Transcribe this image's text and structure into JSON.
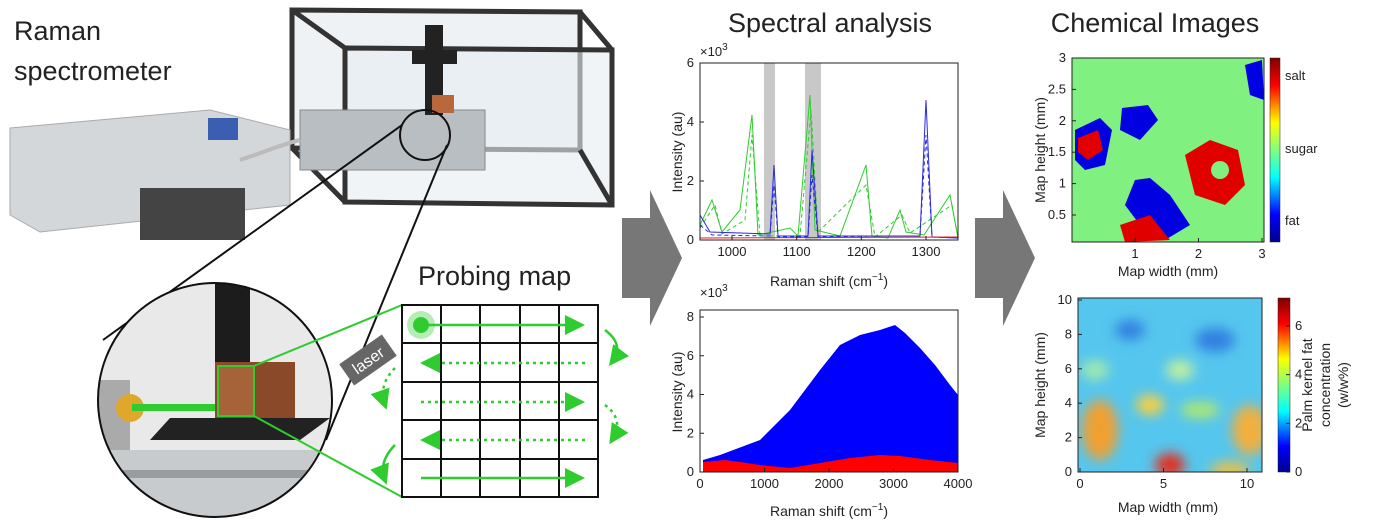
{
  "title_spectrometer": [
    "Raman",
    "spectrometer"
  ],
  "laser_label": "laser",
  "probing_map_title": "Probing map",
  "spectral_analysis": {
    "title": "Spectral analysis",
    "top_plot": {
      "exponent_base": "×10",
      "exponent": "3",
      "yticks": [
        "0",
        "2",
        "4",
        "6"
      ],
      "xticks": [
        "1000",
        "1100",
        "1200",
        "1300"
      ],
      "ylabel": "Intensity (au)",
      "xlabel": [
        "Raman shift (cm",
        "−1",
        ")"
      ]
    },
    "bottom_plot": {
      "exponent_base": "×10",
      "exponent": "3",
      "yticks": [
        "0",
        "2",
        "4",
        "6",
        "8"
      ],
      "xticks": [
        "0",
        "1000",
        "2000",
        "3000",
        "4000"
      ],
      "ylabel": "Intensity (au)",
      "xlabel": [
        "Raman shift (cm",
        "−1",
        ")"
      ]
    }
  },
  "chemical_images": {
    "title": "Chemical Images",
    "top_map": {
      "yticks": [
        "0.5",
        "1",
        "1.5",
        "2",
        "2.5",
        "3"
      ],
      "xticks": [
        "1",
        "2",
        "3"
      ],
      "xlabel": "Map width (mm)",
      "ylabel": "Map height (mm)",
      "colorbar_labels": [
        "salt",
        "sugar",
        "fat"
      ]
    },
    "bottom_map": {
      "yticks": [
        "0",
        "2",
        "4",
        "6",
        "8",
        "10"
      ],
      "xticks": [
        "0",
        "5",
        "10"
      ],
      "xlabel": "Map width (mm)",
      "ylabel": "Map height (mm)",
      "colorbar_ticks": [
        "0",
        "2",
        "4",
        "6"
      ],
      "colorbar_label": [
        "Palm kernel fat",
        "concentration",
        "(w/w%)"
      ]
    }
  }
}
